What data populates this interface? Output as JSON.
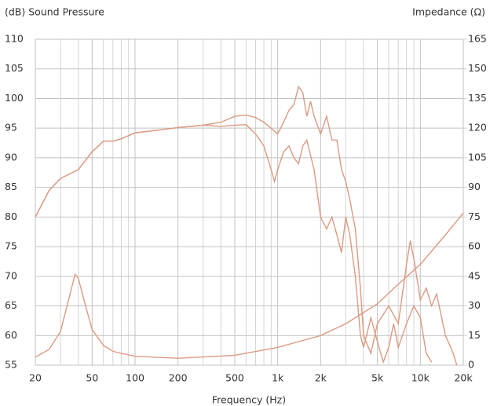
{
  "chart_data": {
    "type": "line",
    "xscale": "log",
    "grid": true,
    "ylabel": "(dB) Sound Pressure",
    "y2label": "Impedance (Ω)",
    "xlabel": "Frequency (Hz)",
    "xlim": [
      20,
      20000
    ],
    "xticks": [
      20,
      50,
      100,
      200,
      500,
      {
        "value": 1000,
        "label": "1k"
      },
      {
        "value": 2000,
        "label": "2k"
      },
      {
        "value": 5000,
        "label": "5k"
      },
      {
        "value": 10000,
        "label": "10k"
      },
      {
        "value": 20000,
        "label": "20k"
      }
    ],
    "xgrid": [
      30,
      40,
      60,
      70,
      80,
      90,
      300,
      400,
      600,
      700,
      800,
      900,
      3000,
      4000,
      6000,
      7000,
      8000,
      9000
    ],
    "ylim": [
      55,
      110
    ],
    "yticks": [
      55,
      60,
      65,
      70,
      75,
      80,
      85,
      90,
      95,
      100,
      105,
      110
    ],
    "y2lim": [
      0,
      165
    ],
    "y2ticks": [
      0,
      15,
      30,
      45,
      60,
      75,
      90,
      105,
      120,
      135,
      150,
      165
    ],
    "series": [
      {
        "color": "#dc9a82",
        "x": [
          20,
          25,
          30,
          40,
          50,
          60,
          70,
          80,
          100,
          150,
          200,
          300,
          400,
          500,
          600,
          700,
          800,
          900,
          1000,
          1100,
          1200,
          1300,
          1400,
          1500,
          1600,
          1700,
          1800,
          2000,
          2200,
          2400,
          2600,
          2800,
          3000,
          3200,
          3500,
          3800,
          4000,
          4500,
          5000,
          6000,
          7000,
          8000,
          8500,
          9000,
          10000,
          11000,
          12000,
          13000,
          15000,
          17000,
          18000
        ],
        "values": [
          80,
          84.5,
          86.5,
          88,
          91,
          92.8,
          92.8,
          93.2,
          94.2,
          94.7,
          95.1,
          95.5,
          96,
          97,
          97.2,
          96.8,
          96,
          95,
          94,
          96,
          98,
          99,
          102,
          101,
          97,
          99.5,
          97,
          94,
          97,
          93,
          93,
          88,
          86,
          83,
          78,
          68,
          60,
          57,
          62,
          65,
          62,
          72,
          76,
          73,
          66,
          68,
          65,
          67,
          60,
          57,
          55
        ]
      },
      {
        "color": "#dc9a82",
        "x": [
          20,
          25,
          30,
          40,
          50,
          60,
          70,
          80,
          100,
          150,
          200,
          300,
          400,
          500,
          600,
          700,
          800,
          900,
          950,
          1000,
          1100,
          1200,
          1300,
          1400,
          1500,
          1600,
          1800,
          2000,
          2200,
          2400,
          2600,
          2800,
          3000,
          3200,
          3500,
          3800,
          4000,
          4500,
          5000,
          5500,
          6000,
          6500,
          7000,
          8000,
          9000,
          10000,
          11000,
          12000
        ],
        "values": [
          80,
          84.5,
          86.5,
          88,
          91,
          92.8,
          92.8,
          93.2,
          94.2,
          94.7,
          95.1,
          95.5,
          95.3,
          95.5,
          95.6,
          94,
          92,
          88,
          86,
          88,
          91,
          92,
          90,
          89,
          92,
          93,
          88,
          80,
          78,
          80,
          77,
          74,
          80,
          77,
          70,
          60,
          58,
          63,
          59,
          55.5,
          58,
          62,
          58,
          62,
          65,
          63,
          57,
          55.5
        ]
      },
      {
        "color": "#dc9a82",
        "axis": "y2",
        "x": [
          20,
          25,
          30,
          35,
          38,
          40,
          45,
          50,
          60,
          70,
          80,
          100,
          200,
          500,
          1000,
          2000,
          3000,
          5000,
          7000,
          10000,
          15000,
          20000
        ],
        "values": [
          4,
          8,
          17,
          36,
          46,
          44,
          30,
          18,
          10,
          7,
          6,
          4.5,
          3.5,
          5,
          9,
          15,
          21,
          31,
          41,
          51,
          66,
          77
        ]
      }
    ]
  }
}
